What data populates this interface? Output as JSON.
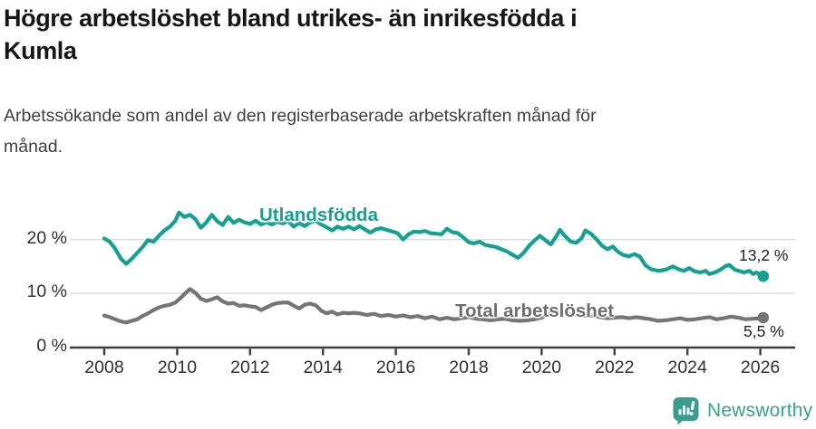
{
  "header": {
    "title_line1": "Högre arbetslöshet bland utrikes- än inrikesfödda i",
    "title_line2": "Kumla",
    "subtitle_line1": "Arbetssökande som andel av den registerbaserade arbetskraften månad för",
    "subtitle_line2": "månad."
  },
  "footer": {
    "brand": "Newsworthy"
  },
  "colors": {
    "teal_line": "#14a192",
    "gray_line": "#757578",
    "gray_label": "#6d6d72",
    "gridline": "#dcdcdc",
    "axis": "#3e3e3e",
    "logo_teal": "#3a9e8f"
  },
  "chart_data": {
    "type": "line",
    "title": "Högre arbetslöshet bland utrikes- än inrikesfödda i Kumla",
    "subtitle": "Arbetssökande som andel av den registerbaserade arbetskraften månad för månad.",
    "xlabel": "",
    "ylabel": "",
    "x_range": [
      2008,
      2026.1
    ],
    "ylim": [
      0,
      27
    ],
    "grid": "horizontal",
    "legend_position": "inline-labels",
    "x_ticks": [
      {
        "value": 2008,
        "label": "2008"
      },
      {
        "value": 2010,
        "label": "2010"
      },
      {
        "value": 2012,
        "label": "2012"
      },
      {
        "value": 2014,
        "label": "2014"
      },
      {
        "value": 2016,
        "label": "2016"
      },
      {
        "value": 2018,
        "label": "2018"
      },
      {
        "value": 2020,
        "label": "2020"
      },
      {
        "value": 2022,
        "label": "2022"
      },
      {
        "value": 2024,
        "label": "2024"
      },
      {
        "value": 2026,
        "label": "2026"
      }
    ],
    "y_ticks": [
      {
        "value": 20,
        "label": "20 %"
      },
      {
        "value": 10,
        "label": "10 %"
      },
      {
        "value": 0,
        "label": "0 %"
      }
    ],
    "series": [
      {
        "name": "utlandsfodda",
        "label": "Utlandsfödda",
        "color": "#14a192",
        "end_label": "13,2 %",
        "end_value": 13.2,
        "points": [
          [
            2008.0,
            20.2
          ],
          [
            2008.15,
            19.6
          ],
          [
            2008.3,
            18.3
          ],
          [
            2008.45,
            16.5
          ],
          [
            2008.6,
            15.5
          ],
          [
            2008.75,
            16.4
          ],
          [
            2008.9,
            17.5
          ],
          [
            2009.05,
            18.6
          ],
          [
            2009.2,
            19.9
          ],
          [
            2009.35,
            19.6
          ],
          [
            2009.5,
            20.7
          ],
          [
            2009.65,
            21.7
          ],
          [
            2009.8,
            22.4
          ],
          [
            2009.95,
            23.5
          ],
          [
            2010.05,
            25.0
          ],
          [
            2010.2,
            24.2
          ],
          [
            2010.35,
            24.6
          ],
          [
            2010.5,
            23.8
          ],
          [
            2010.65,
            22.2
          ],
          [
            2010.8,
            23.2
          ],
          [
            2010.95,
            24.6
          ],
          [
            2011.1,
            23.4
          ],
          [
            2011.25,
            22.7
          ],
          [
            2011.4,
            24.2
          ],
          [
            2011.55,
            23.1
          ],
          [
            2011.7,
            23.7
          ],
          [
            2011.85,
            23.2
          ],
          [
            2012.0,
            22.9
          ],
          [
            2012.15,
            23.5
          ],
          [
            2012.3,
            22.8
          ],
          [
            2012.45,
            23.2
          ],
          [
            2012.6,
            22.8
          ],
          [
            2012.75,
            23.3
          ],
          [
            2012.9,
            23.0
          ],
          [
            2013.05,
            23.4
          ],
          [
            2013.2,
            22.4
          ],
          [
            2013.35,
            23.1
          ],
          [
            2013.5,
            22.5
          ],
          [
            2013.65,
            23.2
          ],
          [
            2013.8,
            23.5
          ],
          [
            2013.95,
            22.8
          ],
          [
            2014.1,
            22.3
          ],
          [
            2014.25,
            21.7
          ],
          [
            2014.4,
            22.4
          ],
          [
            2014.55,
            22.0
          ],
          [
            2014.7,
            22.4
          ],
          [
            2014.85,
            21.9
          ],
          [
            2015.0,
            22.5
          ],
          [
            2015.15,
            21.9
          ],
          [
            2015.3,
            21.3
          ],
          [
            2015.45,
            21.9
          ],
          [
            2015.6,
            22.1
          ],
          [
            2015.75,
            21.8
          ],
          [
            2015.9,
            21.5
          ],
          [
            2016.05,
            21.2
          ],
          [
            2016.2,
            20.0
          ],
          [
            2016.35,
            21.0
          ],
          [
            2016.5,
            21.5
          ],
          [
            2016.65,
            21.4
          ],
          [
            2016.8,
            21.6
          ],
          [
            2016.95,
            21.2
          ],
          [
            2017.1,
            21.1
          ],
          [
            2017.25,
            21.0
          ],
          [
            2017.4,
            22.0
          ],
          [
            2017.55,
            21.4
          ],
          [
            2017.7,
            21.2
          ],
          [
            2017.85,
            20.4
          ],
          [
            2018.0,
            19.5
          ],
          [
            2018.15,
            19.3
          ],
          [
            2018.3,
            19.6
          ],
          [
            2018.45,
            19.0
          ],
          [
            2018.6,
            18.8
          ],
          [
            2018.75,
            18.6
          ],
          [
            2018.9,
            18.2
          ],
          [
            2019.05,
            17.8
          ],
          [
            2019.2,
            17.2
          ],
          [
            2019.35,
            16.6
          ],
          [
            2019.5,
            17.5
          ],
          [
            2019.65,
            18.8
          ],
          [
            2019.8,
            19.8
          ],
          [
            2019.95,
            20.7
          ],
          [
            2020.1,
            19.9
          ],
          [
            2020.25,
            19.1
          ],
          [
            2020.4,
            20.6
          ],
          [
            2020.5,
            21.8
          ],
          [
            2020.65,
            20.6
          ],
          [
            2020.8,
            19.6
          ],
          [
            2020.95,
            19.4
          ],
          [
            2021.1,
            20.3
          ],
          [
            2021.2,
            21.7
          ],
          [
            2021.35,
            21.1
          ],
          [
            2021.5,
            20.1
          ],
          [
            2021.65,
            18.9
          ],
          [
            2021.8,
            18.2
          ],
          [
            2021.95,
            18.7
          ],
          [
            2022.1,
            17.7
          ],
          [
            2022.25,
            17.1
          ],
          [
            2022.4,
            16.9
          ],
          [
            2022.55,
            17.3
          ],
          [
            2022.7,
            16.8
          ],
          [
            2022.85,
            15.2
          ],
          [
            2023.0,
            14.5
          ],
          [
            2023.2,
            14.2
          ],
          [
            2023.4,
            14.4
          ],
          [
            2023.6,
            15.0
          ],
          [
            2023.75,
            14.5
          ],
          [
            2023.9,
            14.2
          ],
          [
            2024.05,
            14.7
          ],
          [
            2024.2,
            14.1
          ],
          [
            2024.35,
            13.9
          ],
          [
            2024.5,
            14.2
          ],
          [
            2024.6,
            13.6
          ],
          [
            2024.75,
            13.9
          ],
          [
            2024.9,
            14.4
          ],
          [
            2025.05,
            15.1
          ],
          [
            2025.15,
            15.3
          ],
          [
            2025.3,
            14.4
          ],
          [
            2025.45,
            14.1
          ],
          [
            2025.55,
            13.9
          ],
          [
            2025.7,
            14.2
          ],
          [
            2025.8,
            13.6
          ],
          [
            2025.9,
            13.9
          ],
          [
            2026.0,
            13.4
          ],
          [
            2026.08,
            13.2
          ]
        ]
      },
      {
        "name": "total",
        "label": "Total arbetslöshet",
        "color": "#757578",
        "end_label": "5,5 %",
        "end_value": 5.5,
        "points": [
          [
            2008.0,
            5.9
          ],
          [
            2008.15,
            5.6
          ],
          [
            2008.3,
            5.2
          ],
          [
            2008.45,
            4.8
          ],
          [
            2008.6,
            4.6
          ],
          [
            2008.75,
            4.9
          ],
          [
            2008.9,
            5.2
          ],
          [
            2009.05,
            5.8
          ],
          [
            2009.2,
            6.3
          ],
          [
            2009.35,
            6.9
          ],
          [
            2009.5,
            7.4
          ],
          [
            2009.65,
            7.7
          ],
          [
            2009.8,
            7.9
          ],
          [
            2009.95,
            8.3
          ],
          [
            2010.1,
            9.2
          ],
          [
            2010.25,
            10.2
          ],
          [
            2010.35,
            10.8
          ],
          [
            2010.5,
            10.1
          ],
          [
            2010.65,
            9.0
          ],
          [
            2010.8,
            8.6
          ],
          [
            2010.95,
            8.9
          ],
          [
            2011.1,
            9.3
          ],
          [
            2011.25,
            8.5
          ],
          [
            2011.4,
            8.1
          ],
          [
            2011.55,
            8.2
          ],
          [
            2011.7,
            7.7
          ],
          [
            2011.85,
            7.8
          ],
          [
            2012.0,
            7.6
          ],
          [
            2012.15,
            7.5
          ],
          [
            2012.3,
            6.9
          ],
          [
            2012.45,
            7.4
          ],
          [
            2012.6,
            7.9
          ],
          [
            2012.75,
            8.2
          ],
          [
            2012.9,
            8.3
          ],
          [
            2013.05,
            8.3
          ],
          [
            2013.2,
            7.7
          ],
          [
            2013.35,
            7.2
          ],
          [
            2013.5,
            7.9
          ],
          [
            2013.65,
            8.1
          ],
          [
            2013.8,
            7.8
          ],
          [
            2013.95,
            6.8
          ],
          [
            2014.1,
            6.3
          ],
          [
            2014.25,
            6.6
          ],
          [
            2014.4,
            6.1
          ],
          [
            2014.55,
            6.4
          ],
          [
            2014.7,
            6.3
          ],
          [
            2014.85,
            6.4
          ],
          [
            2015.0,
            6.3
          ],
          [
            2015.2,
            6.0
          ],
          [
            2015.4,
            6.2
          ],
          [
            2015.6,
            5.8
          ],
          [
            2015.8,
            6.0
          ],
          [
            2016.0,
            5.7
          ],
          [
            2016.2,
            5.9
          ],
          [
            2016.4,
            5.6
          ],
          [
            2016.6,
            5.8
          ],
          [
            2016.8,
            5.4
          ],
          [
            2017.0,
            5.7
          ],
          [
            2017.2,
            5.2
          ],
          [
            2017.4,
            5.5
          ],
          [
            2017.6,
            5.2
          ],
          [
            2017.8,
            5.4
          ],
          [
            2018.0,
            5.6
          ],
          [
            2018.2,
            5.3
          ],
          [
            2018.4,
            5.2
          ],
          [
            2018.6,
            5.0
          ],
          [
            2018.8,
            5.2
          ],
          [
            2019.0,
            5.3
          ],
          [
            2019.2,
            5.0
          ],
          [
            2019.4,
            4.9
          ],
          [
            2019.6,
            5.0
          ],
          [
            2019.8,
            5.2
          ],
          [
            2020.0,
            5.5
          ],
          [
            2020.2,
            6.2
          ],
          [
            2020.4,
            6.6
          ],
          [
            2020.6,
            6.4
          ],
          [
            2020.8,
            6.2
          ],
          [
            2021.0,
            6.0
          ],
          [
            2021.2,
            5.8
          ],
          [
            2021.4,
            5.9
          ],
          [
            2021.6,
            5.6
          ],
          [
            2021.8,
            5.4
          ],
          [
            2022.0,
            5.5
          ],
          [
            2022.2,
            5.6
          ],
          [
            2022.4,
            5.4
          ],
          [
            2022.6,
            5.6
          ],
          [
            2022.8,
            5.4
          ],
          [
            2023.0,
            5.2
          ],
          [
            2023.2,
            4.9
          ],
          [
            2023.4,
            5.0
          ],
          [
            2023.6,
            5.2
          ],
          [
            2023.8,
            5.4
          ],
          [
            2024.0,
            5.1
          ],
          [
            2024.2,
            5.2
          ],
          [
            2024.4,
            5.4
          ],
          [
            2024.6,
            5.6
          ],
          [
            2024.8,
            5.2
          ],
          [
            2025.0,
            5.4
          ],
          [
            2025.2,
            5.7
          ],
          [
            2025.4,
            5.5
          ],
          [
            2025.6,
            5.2
          ],
          [
            2025.8,
            5.3
          ],
          [
            2026.0,
            5.4
          ],
          [
            2026.08,
            5.5
          ]
        ]
      }
    ]
  }
}
